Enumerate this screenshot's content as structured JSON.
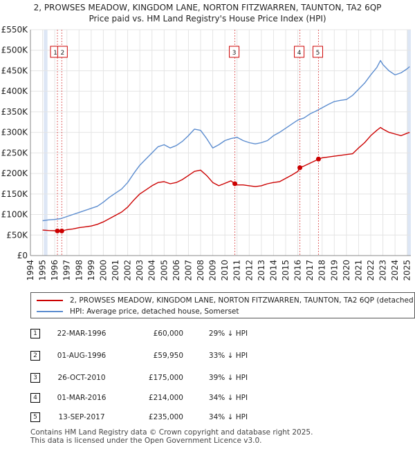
{
  "title_line1": "2, PROWSES MEADOW, KINGDOM LANE, NORTON FITZWARREN, TAUNTON, TA2 6QP",
  "title_line2": "Price paid vs. HM Land Registry's House Price Index (HPI)",
  "colors": {
    "property": "#cc0000",
    "hpi": "#5b8ccf",
    "band": "#dde6f5",
    "vline": "#cc0000"
  },
  "chart_data": {
    "type": "line",
    "title": "Price paid vs. HM Land Registry's House Price Index (HPI)",
    "xlabel": "",
    "ylabel": "",
    "xlim": [
      1994,
      2025.3
    ],
    "ylim": [
      0,
      550000
    ],
    "yticks": [
      0,
      50000,
      100000,
      150000,
      200000,
      250000,
      300000,
      350000,
      400000,
      450000,
      500000,
      550000
    ],
    "ytick_labels": [
      "£0",
      "£50K",
      "£100K",
      "£150K",
      "£200K",
      "£250K",
      "£300K",
      "£350K",
      "£400K",
      "£450K",
      "£500K",
      "£550K"
    ],
    "xticks": [
      1994,
      1995,
      1996,
      1997,
      1998,
      1999,
      2000,
      2001,
      2002,
      2003,
      2004,
      2005,
      2006,
      2007,
      2008,
      2009,
      2010,
      2011,
      2012,
      2013,
      2014,
      2015,
      2016,
      2017,
      2018,
      2019,
      2020,
      2021,
      2022,
      2023,
      2024,
      2025
    ],
    "xtick_labels": [
      "1994",
      "1995",
      "1996",
      "1997",
      "1998",
      "1999",
      "2000",
      "2001",
      "2002",
      "2003",
      "2004",
      "2005",
      "2006",
      "2007",
      "2008",
      "2009",
      "2010",
      "2011",
      "2012",
      "2013",
      "2014",
      "2015",
      "2016",
      "2017",
      "2018",
      "2019",
      "2020",
      "2021",
      "2022",
      "2023",
      "2024",
      "2025"
    ],
    "shaded_ranges": [
      [
        1995.1,
        1995.4
      ],
      [
        2025.0,
        2025.3
      ]
    ],
    "series": [
      {
        "name": "2, PROWSES MEADOW, KINGDOM LANE, NORTON FITZWARREN, TAUNTON, TA2 6QP (detached house)",
        "x": [
          1995.0,
          1995.5,
          1996.0,
          1996.22,
          1996.58,
          1997.0,
          1997.5,
          1998.0,
          1998.5,
          1999.0,
          1999.5,
          2000.0,
          2000.5,
          2001.0,
          2001.5,
          2002.0,
          2002.5,
          2003.0,
          2003.5,
          2004.0,
          2004.5,
          2005.0,
          2005.5,
          2006.0,
          2006.5,
          2007.0,
          2007.5,
          2008.0,
          2008.5,
          2009.0,
          2009.5,
          2010.0,
          2010.5,
          2010.82,
          2011.0,
          2011.5,
          2012.0,
          2012.5,
          2013.0,
          2013.5,
          2014.0,
          2014.5,
          2015.0,
          2015.5,
          2016.0,
          2016.17,
          2016.5,
          2017.0,
          2017.5,
          2017.7,
          2018.0,
          2018.5,
          2019.0,
          2019.5,
          2020.0,
          2020.5,
          2021.0,
          2021.5,
          2022.0,
          2022.5,
          2022.8,
          2023.0,
          2023.5,
          2024.0,
          2024.5,
          2025.0,
          2025.2
        ],
        "values": [
          62000,
          61000,
          60500,
          60000,
          59950,
          63000,
          65000,
          68000,
          70000,
          72000,
          76000,
          82000,
          90000,
          98000,
          106000,
          118000,
          135000,
          150000,
          160000,
          170000,
          178000,
          180000,
          175000,
          178000,
          185000,
          195000,
          205000,
          208000,
          195000,
          178000,
          170000,
          176000,
          182000,
          175000,
          172000,
          172000,
          170000,
          168000,
          170000,
          175000,
          178000,
          180000,
          188000,
          196000,
          205000,
          214000,
          218000,
          225000,
          232000,
          235000,
          238000,
          240000,
          242000,
          244000,
          246000,
          248000,
          262000,
          275000,
          292000,
          305000,
          312000,
          308000,
          300000,
          296000,
          292000,
          298000,
          300000
        ]
      },
      {
        "name": "HPI: Average price, detached house, Somerset",
        "x": [
          1995.0,
          1995.5,
          1996.0,
          1996.5,
          1997.0,
          1997.5,
          1998.0,
          1998.5,
          1999.0,
          1999.5,
          2000.0,
          2000.5,
          2001.0,
          2001.5,
          2002.0,
          2002.5,
          2003.0,
          2003.5,
          2004.0,
          2004.5,
          2005.0,
          2005.5,
          2006.0,
          2006.5,
          2007.0,
          2007.5,
          2008.0,
          2008.5,
          2009.0,
          2009.5,
          2010.0,
          2010.5,
          2011.0,
          2011.5,
          2012.0,
          2012.5,
          2013.0,
          2013.5,
          2014.0,
          2014.5,
          2015.0,
          2015.5,
          2016.0,
          2016.5,
          2017.0,
          2017.5,
          2018.0,
          2018.5,
          2019.0,
          2019.5,
          2020.0,
          2020.5,
          2021.0,
          2021.5,
          2022.0,
          2022.5,
          2022.8,
          2023.0,
          2023.5,
          2024.0,
          2024.5,
          2025.0,
          2025.2
        ],
        "values": [
          85000,
          87000,
          88000,
          90000,
          95000,
          100000,
          105000,
          110000,
          115000,
          120000,
          130000,
          142000,
          152000,
          162000,
          178000,
          200000,
          220000,
          235000,
          250000,
          265000,
          270000,
          262000,
          268000,
          278000,
          292000,
          308000,
          305000,
          285000,
          262000,
          270000,
          280000,
          285000,
          288000,
          280000,
          275000,
          272000,
          275000,
          280000,
          292000,
          300000,
          310000,
          320000,
          330000,
          335000,
          345000,
          352000,
          360000,
          368000,
          375000,
          378000,
          380000,
          390000,
          405000,
          420000,
          440000,
          458000,
          475000,
          465000,
          450000,
          440000,
          445000,
          455000,
          460000
        ]
      }
    ],
    "sales": [
      {
        "label": "1",
        "x": 1996.22,
        "value": 60000
      },
      {
        "label": "2",
        "x": 1996.58,
        "value": 59950
      },
      {
        "label": "3",
        "x": 2010.82,
        "value": 175000
      },
      {
        "label": "4",
        "x": 2016.17,
        "value": 214000
      },
      {
        "label": "5",
        "x": 2017.7,
        "value": 235000
      }
    ]
  },
  "legend": {
    "property_label": "2, PROWSES MEADOW, KINGDOM LANE, NORTON FITZWARREN, TAUNTON, TA2 6QP (detached house)",
    "hpi_label": "HPI: Average price, detached house, Somerset"
  },
  "transactions": [
    {
      "num": "1",
      "date": "22-MAR-1996",
      "price": "£60,000",
      "hpi": "29% ↓ HPI"
    },
    {
      "num": "2",
      "date": "01-AUG-1996",
      "price": "£59,950",
      "hpi": "33% ↓ HPI"
    },
    {
      "num": "3",
      "date": "26-OCT-2010",
      "price": "£175,000",
      "hpi": "39% ↓ HPI"
    },
    {
      "num": "4",
      "date": "01-MAR-2016",
      "price": "£214,000",
      "hpi": "34% ↓ HPI"
    },
    {
      "num": "5",
      "date": "13-SEP-2017",
      "price": "£235,000",
      "hpi": "34% ↓ HPI"
    }
  ],
  "footer_line1": "Contains HM Land Registry data © Crown copyright and database right 2025.",
  "footer_line2": "This data is licensed under the Open Government Licence v3.0."
}
